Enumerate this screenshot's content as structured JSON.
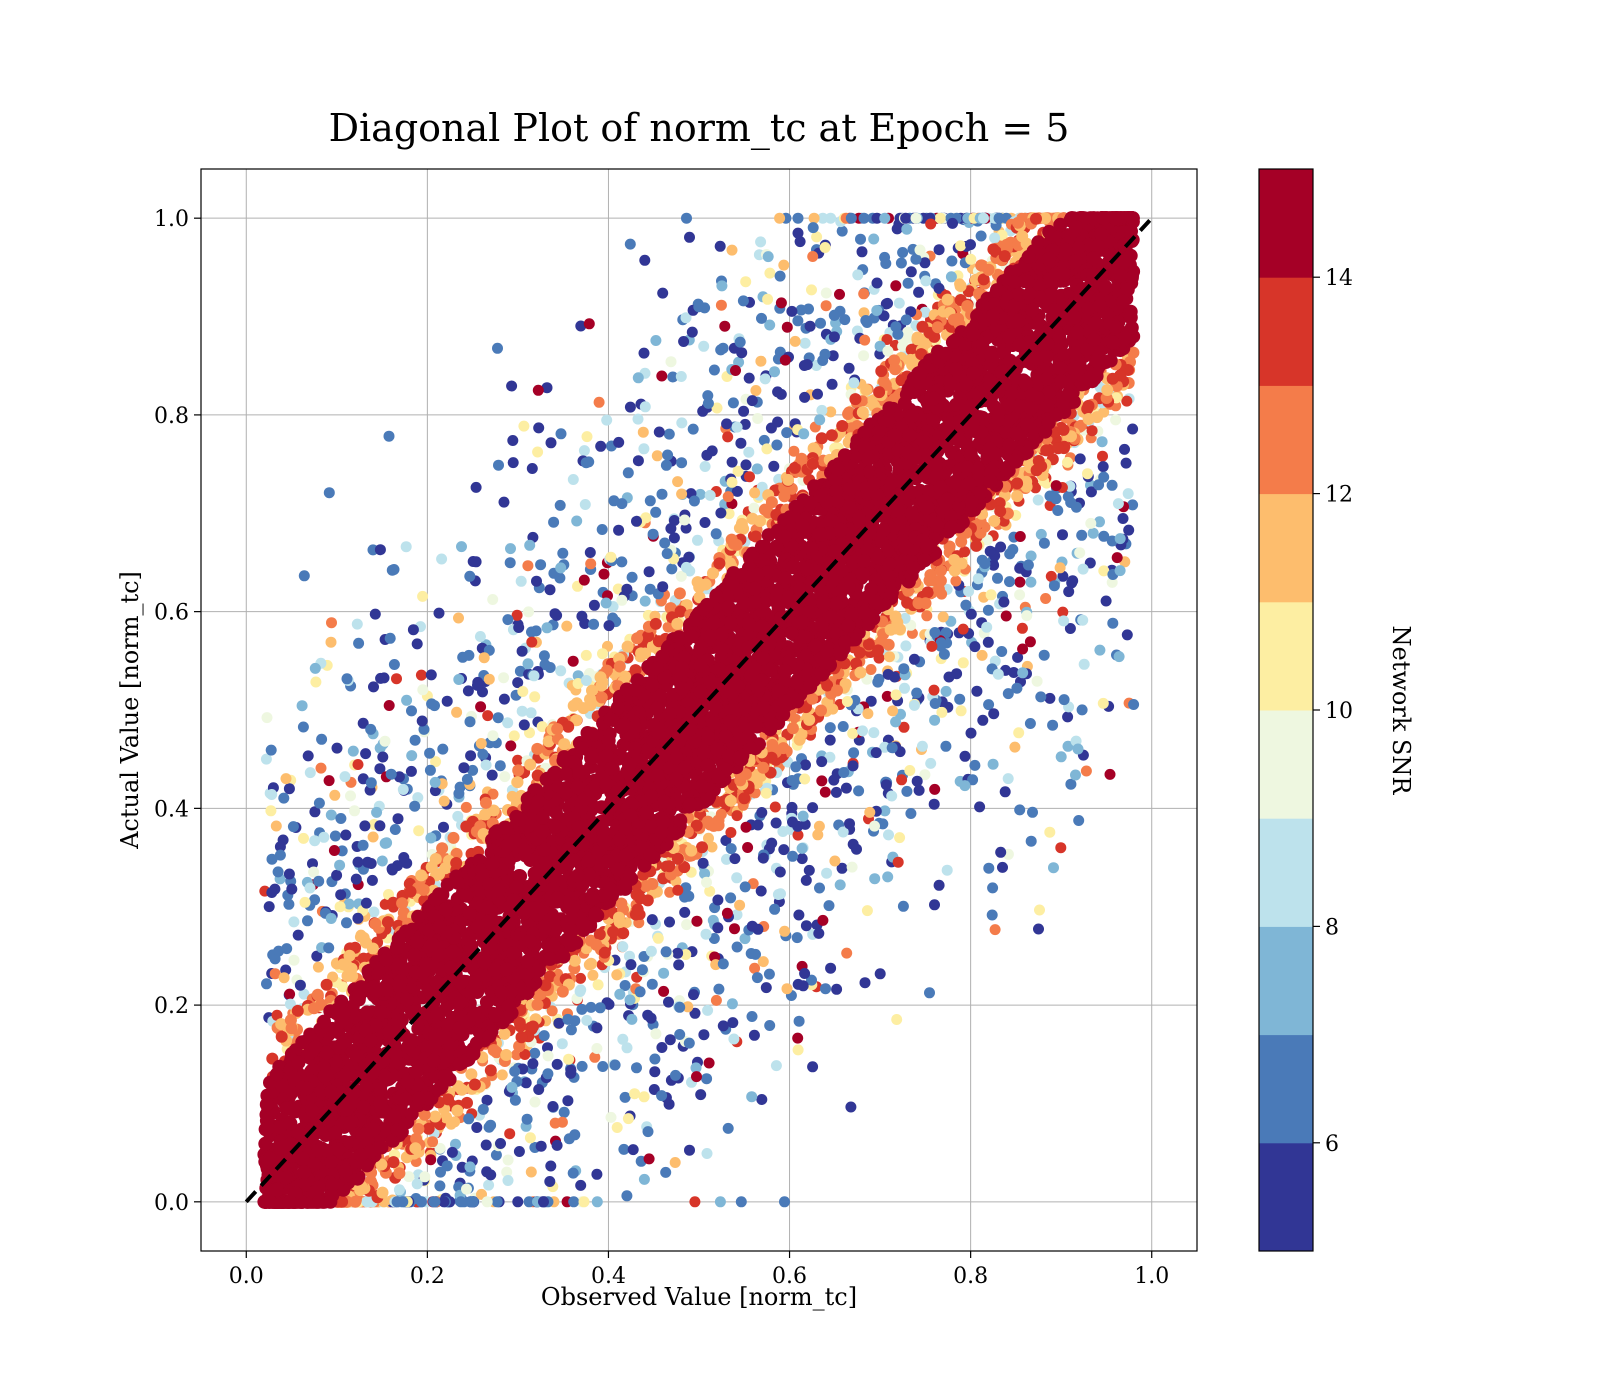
{
  "chart_data": {
    "type": "scatter",
    "title": "Diagonal Plot of norm_tc at Epoch = 5",
    "xlabel": "Observed Value [norm_tc]",
    "ylabel": "Actual Value [norm_tc]",
    "xlim": [
      -0.05,
      1.05
    ],
    "ylim": [
      -0.05,
      1.05
    ],
    "xticks": [
      "0.0",
      "0.2",
      "0.4",
      "0.6",
      "0.8",
      "1.0"
    ],
    "yticks": [
      "0.0",
      "0.2",
      "0.4",
      "0.6",
      "0.8",
      "1.0"
    ],
    "grid": true,
    "reference_line": {
      "style": "dashed",
      "color": "#000000",
      "from": [
        0,
        0
      ],
      "to": [
        1,
        1
      ]
    },
    "point_cloud": {
      "description": "dense band of high-SNR points along y = x, widening scatter of low-SNR points away from the diagonal",
      "core_band_halfwidth": 0.11,
      "value_range": [
        0,
        1
      ]
    },
    "colorbar": {
      "label": "Network SNR",
      "range": [
        5,
        15
      ],
      "ticks": [
        "6",
        "8",
        "10",
        "12",
        "14"
      ],
      "bins": [
        {
          "from": 5,
          "to": 6,
          "color": "#313695"
        },
        {
          "from": 6,
          "to": 7,
          "color": "#4a7ab8"
        },
        {
          "from": 7,
          "to": 8,
          "color": "#7fb6d6"
        },
        {
          "from": 8,
          "to": 9,
          "color": "#bde2ec"
        },
        {
          "from": 9,
          "to": 10,
          "color": "#eef7e0"
        },
        {
          "from": 10,
          "to": 11,
          "color": "#fdeea2"
        },
        {
          "from": 11,
          "to": 12,
          "color": "#fdbd6d"
        },
        {
          "from": 12,
          "to": 13,
          "color": "#f47c4a"
        },
        {
          "from": 13,
          "to": 14,
          "color": "#d73529"
        },
        {
          "from": 14,
          "to": 15,
          "color": "#a50026"
        }
      ]
    }
  }
}
